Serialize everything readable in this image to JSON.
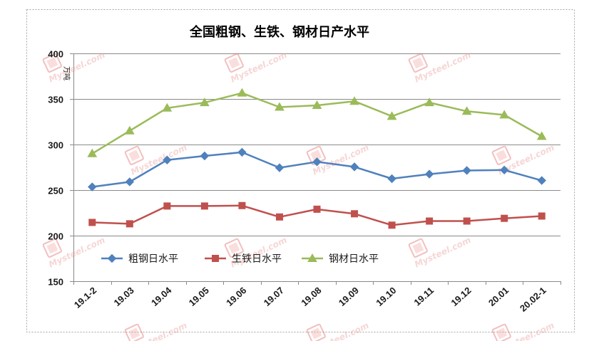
{
  "chart_data": {
    "type": "line",
    "title": "全国粗钢、生铁、钢材日产水平",
    "ylabel": "万吨",
    "categories": [
      "19.1-2",
      "19.03",
      "19.04",
      "19.05",
      "19.06",
      "19.07",
      "19.08",
      "19.09",
      "19.10",
      "19.11",
      "19.12",
      "20.01",
      "20.02-1"
    ],
    "ylim": [
      150,
      400
    ],
    "yticks": [
      150,
      200,
      250,
      300,
      350,
      400
    ],
    "grid": true,
    "legend_position": "inside-bottom-left",
    "series": [
      {
        "name": "粗钢日水平",
        "color": "#4F81BD",
        "marker": "diamond",
        "values": [
          253.5,
          259,
          283,
          287.5,
          291.5,
          274.5,
          281,
          275.5,
          262.5,
          267.5,
          271.5,
          272,
          260.5
        ]
      },
      {
        "name": "生铁日水平",
        "color": "#C0504D",
        "marker": "square",
        "values": [
          214.5,
          213,
          232.5,
          232.5,
          233,
          220.5,
          229,
          224,
          211.5,
          216,
          216,
          219,
          221.5
        ]
      },
      {
        "name": "钢材日水平",
        "color": "#9BBB59",
        "marker": "triangle",
        "values": [
          290,
          315,
          340,
          346,
          356.5,
          341,
          343,
          347.5,
          331,
          346,
          336.5,
          332.5,
          309
        ]
      }
    ]
  },
  "watermark_text": "Mysteel.com"
}
